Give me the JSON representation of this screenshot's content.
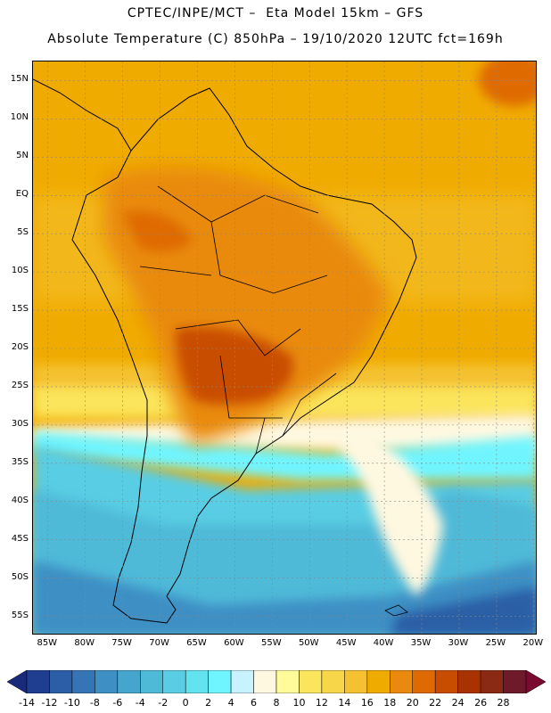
{
  "header": {
    "line1": "CPTEC/INPE/MCT –  Eta Model 15km – GFS",
    "line2": "Absolute Temperature (C) 850hPa – 19/10/2020 12UTC fct=169h"
  },
  "map": {
    "lat_labels": [
      "15N",
      "10N",
      "5N",
      "EQ",
      "5S",
      "10S",
      "15S",
      "20S",
      "25S",
      "30S",
      "35S",
      "40S",
      "45S",
      "50S",
      "55S"
    ],
    "lon_labels": [
      "85W",
      "80W",
      "75W",
      "70W",
      "65W",
      "60W",
      "55W",
      "50W",
      "45W",
      "40W",
      "35W",
      "30W",
      "25W",
      "20W"
    ],
    "lat_values": [
      15,
      10,
      5,
      0,
      -5,
      -10,
      -15,
      -20,
      -25,
      -30,
      -35,
      -40,
      -45,
      -50,
      -55
    ],
    "lon_values": [
      -85,
      -80,
      -75,
      -70,
      -65,
      -60,
      -55,
      -50,
      -45,
      -40,
      -35,
      -30,
      -25,
      -20
    ],
    "grid": true
  },
  "legend": {
    "labels": [
      "-14",
      "-12",
      "-10",
      "-8",
      "-6",
      "-4",
      "-2",
      "0",
      "2",
      "4",
      "6",
      "8",
      "10",
      "12",
      "14",
      "16",
      "18",
      "20",
      "22",
      "24",
      "26",
      "28"
    ],
    "colors": [
      "#1f3e8f",
      "#2b5ea6",
      "#3575b5",
      "#3d8fc4",
      "#45a5cc",
      "#4fb9d8",
      "#58cde3",
      "#63e2ef",
      "#6ff5ff",
      "#c8f2ff",
      "#fff8e0",
      "#fffb9a",
      "#fbe55c",
      "#f8d64a",
      "#f4c230",
      "#f0ab00",
      "#e98a0e",
      "#df6a04",
      "#c94d00",
      "#a83300",
      "#8a2a14",
      "#6f1a2a"
    ],
    "under_color": "#1a2a7a",
    "over_color": "#7a0a30"
  }
}
